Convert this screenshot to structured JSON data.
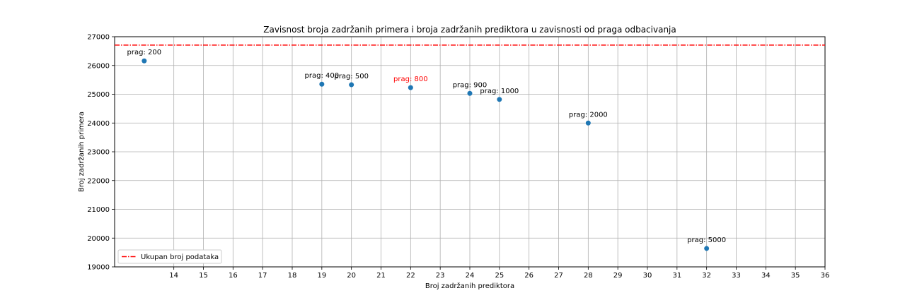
{
  "chart_data": {
    "type": "scatter",
    "title": "Zavisnost broja zadržanih primera i broja zadržanih prediktora u zavisnosti od praga odbacivanja",
    "xlabel": "Broj zadržanih prediktora",
    "ylabel": "Broj zadržanih primera",
    "xlim": [
      12,
      36
    ],
    "ylim": [
      19000,
      27000
    ],
    "xticks": [
      14,
      15,
      16,
      17,
      18,
      19,
      20,
      21,
      22,
      23,
      24,
      25,
      26,
      27,
      28,
      29,
      30,
      31,
      32,
      33,
      34,
      35,
      36
    ],
    "yticks": [
      19000,
      20000,
      21000,
      22000,
      23000,
      24000,
      25000,
      26000,
      27000
    ],
    "grid": true,
    "point_color": "#1f77b4",
    "highlight_color": "#ff0000",
    "series": [
      {
        "points": [
          {
            "x": 13,
            "y": 26160,
            "label": "prag: 200",
            "highlight": false
          },
          {
            "x": 19,
            "y": 25350,
            "label": "prag: 400",
            "highlight": false
          },
          {
            "x": 20,
            "y": 25330,
            "label": "prag: 500",
            "highlight": false
          },
          {
            "x": 22,
            "y": 25230,
            "label": "prag: 800",
            "highlight": true
          },
          {
            "x": 24,
            "y": 25030,
            "label": "prag: 900",
            "highlight": false
          },
          {
            "x": 25,
            "y": 24820,
            "label": "prag: 1000",
            "highlight": false
          },
          {
            "x": 28,
            "y": 24000,
            "label": "prag: 2000",
            "highlight": false
          },
          {
            "x": 32,
            "y": 19640,
            "label": "prag: 5000",
            "highlight": false
          }
        ]
      }
    ],
    "reference_line": {
      "y": 26710,
      "name": "Ukupan broj podataka",
      "color": "#ff0000",
      "style": "dash-dot"
    },
    "legend": {
      "position": "lower-left",
      "entries": [
        "Ukupan broj podataka"
      ]
    }
  }
}
